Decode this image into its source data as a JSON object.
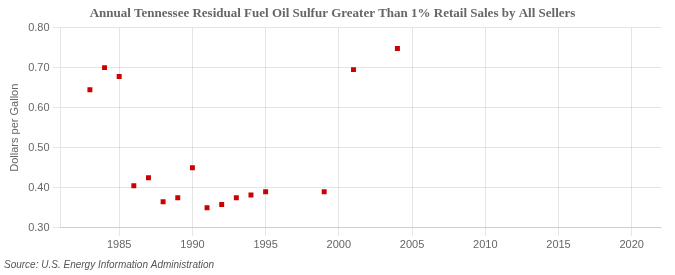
{
  "chart_data": {
    "type": "scatter",
    "title": "Annual Tennessee Residual Fuel Oil Sulfur Greater Than 1% Retail Sales by All Sellers",
    "ylabel": "Dollars per Gallon",
    "annotation": "Source: U.S. Energy Information Administration",
    "x": [
      1983,
      1984,
      1985,
      1986,
      1987,
      1988,
      1989,
      1990,
      1991,
      1992,
      1993,
      1994,
      1995,
      1999,
      2001,
      2004
    ],
    "values": [
      0.645,
      0.7,
      0.678,
      0.405,
      0.425,
      0.365,
      0.375,
      0.45,
      0.35,
      0.358,
      0.375,
      0.382,
      0.39,
      0.39,
      0.695,
      0.748
    ],
    "color": "#cc0000",
    "marker": "square",
    "xlim": [
      1981,
      2022
    ],
    "xticks": [
      1985,
      1990,
      1995,
      2000,
      2005,
      2010,
      2015,
      2020
    ],
    "ylim": [
      0.3,
      0.8
    ],
    "yticks": [
      {
        "value": 0.3,
        "label": "0.30"
      },
      {
        "value": 0.4,
        "label": "0.40"
      },
      {
        "value": 0.5,
        "label": "0.50"
      },
      {
        "value": 0.6,
        "label": "0.60"
      },
      {
        "value": 0.7,
        "label": "0.70"
      },
      {
        "value": 0.8,
        "label": "0.80"
      }
    ],
    "grid": true
  }
}
